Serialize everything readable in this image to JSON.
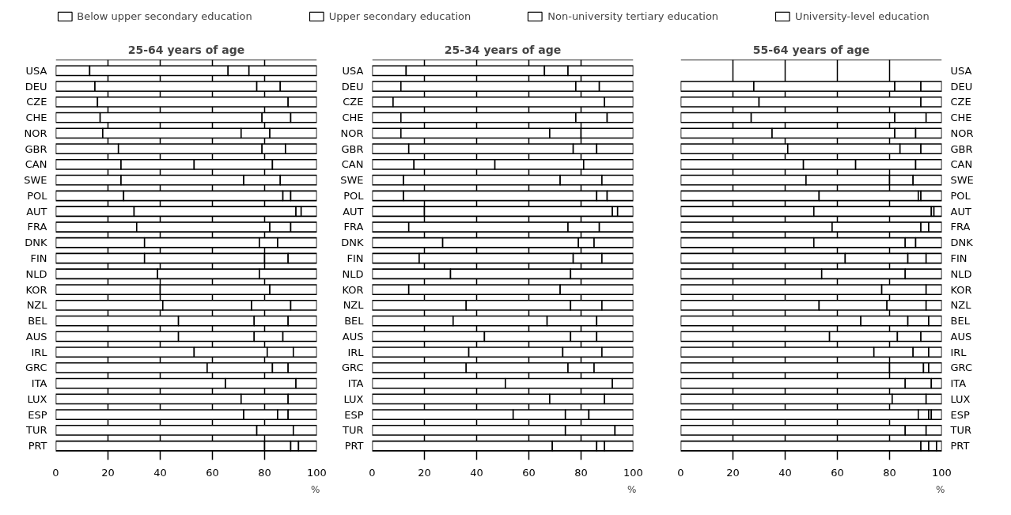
{
  "chart_data": [
    {
      "type": "bar",
      "title": "25-64 years of age",
      "xlabel": "%",
      "orientation": "horizontal",
      "stacked": true,
      "legend": "top",
      "grid": "x",
      "xlim": [
        0,
        100
      ],
      "xticks": [
        0,
        20,
        40,
        60,
        80,
        100
      ],
      "categories": [
        "USA",
        "DEU",
        "CZE",
        "CHE",
        "NOR",
        "GBR",
        "CAN",
        "SWE",
        "POL",
        "AUT",
        "FRA",
        "DNK",
        "FIN",
        "NLD",
        "KOR",
        "NZL",
        "BEL",
        "AUS",
        "IRL",
        "GRC",
        "ITA",
        "LUX",
        "ESP",
        "TUR",
        "PRT"
      ],
      "series": [
        {
          "name": "Below upper secondary education",
          "color": "#ffffff",
          "values": [
            13,
            15,
            16,
            17,
            18,
            24,
            25,
            25,
            26,
            30,
            31,
            34,
            34,
            39,
            40,
            41,
            47,
            47,
            53,
            58,
            65,
            71,
            72,
            77,
            80
          ]
        },
        {
          "name": "Upper secondary education",
          "color": "#ffffff",
          "values": [
            53,
            62,
            73,
            62,
            53,
            55,
            28,
            47,
            61,
            62,
            51,
            44,
            46,
            39,
            42,
            34,
            29,
            29,
            28,
            25,
            27,
            18,
            13,
            14,
            10
          ]
        },
        {
          "name": "Non-university tertiary education",
          "color": "#ffffff",
          "values": [
            8,
            9,
            0,
            11,
            11,
            9,
            30,
            14,
            3,
            2,
            8,
            7,
            9,
            0,
            0,
            15,
            13,
            11,
            10,
            6,
            0,
            0,
            4,
            0,
            3
          ]
        },
        {
          "name": "University-level education",
          "color": "#ffffff",
          "values": [
            26,
            14,
            11,
            10,
            18,
            12,
            17,
            14,
            10,
            6,
            10,
            15,
            11,
            22,
            18,
            10,
            11,
            13,
            9,
            11,
            8,
            11,
            11,
            9,
            7
          ]
        }
      ]
    },
    {
      "type": "bar",
      "title": "25-34 years of age",
      "xlabel": "%",
      "orientation": "horizontal",
      "stacked": true,
      "grid": "x",
      "xlim": [
        0,
        100
      ],
      "xticks": [
        0,
        20,
        40,
        60,
        80,
        100
      ],
      "categories": [
        "USA",
        "DEU",
        "CZE",
        "CHE",
        "NOR",
        "GBR",
        "CAN",
        "SWE",
        "POL",
        "AUT",
        "FRA",
        "DNK",
        "FIN",
        "NLD",
        "KOR",
        "NZL",
        "BEL",
        "AUS",
        "IRL",
        "GRC",
        "ITA",
        "LUX",
        "ESP",
        "TUR",
        "PRT"
      ],
      "series": [
        {
          "color": "#ffffff",
          "values": [
            13,
            11,
            8,
            11,
            11,
            14,
            16,
            12,
            12,
            20,
            14,
            27,
            18,
            30,
            14,
            36,
            31,
            43,
            37,
            36,
            51,
            68,
            54,
            74,
            69
          ]
        },
        {
          "color": "#ffffff",
          "values": [
            53,
            67,
            81,
            67,
            57,
            63,
            31,
            60,
            74,
            72,
            61,
            52,
            59,
            46,
            58,
            40,
            36,
            33,
            36,
            39,
            41,
            21,
            20,
            19,
            17
          ]
        },
        {
          "color": "#ffffff",
          "values": [
            9,
            9,
            0,
            12,
            12,
            9,
            34,
            16,
            4,
            2,
            12,
            6,
            11,
            0,
            0,
            12,
            19,
            10,
            15,
            10,
            0,
            0,
            9,
            0,
            3
          ]
        },
        {
          "color": "#ffffff",
          "values": [
            25,
            13,
            11,
            10,
            20,
            14,
            19,
            12,
            10,
            6,
            13,
            15,
            12,
            24,
            28,
            12,
            14,
            14,
            12,
            15,
            8,
            11,
            17,
            7,
            11
          ]
        }
      ]
    },
    {
      "type": "bar",
      "title": "55-64 years of age",
      "xlabel": "%",
      "orientation": "horizontal",
      "stacked": true,
      "grid": "x",
      "xlim": [
        0,
        100
      ],
      "xticks": [
        0,
        20,
        40,
        60,
        80,
        100
      ],
      "categories": [
        "USA",
        "DEU",
        "CZE",
        "CHE",
        "NOR",
        "GBR",
        "CAN",
        "SWE",
        "POL",
        "AUT",
        "FRA",
        "DNK",
        "FIN",
        "NLD",
        "KOR",
        "NZL",
        "BEL",
        "AUS",
        "IRL",
        "GRC",
        "ITA",
        "LUX",
        "ESP",
        "TUR",
        "PRT"
      ],
      "series": [
        {
          "color": "#ffffff",
          "values": [
            null,
            28,
            30,
            27,
            35,
            41,
            47,
            48,
            53,
            51,
            58,
            51,
            63,
            54,
            77,
            53,
            69,
            57,
            74,
            80,
            86,
            81,
            91,
            86,
            92
          ]
        },
        {
          "color": "#ffffff",
          "values": [
            null,
            54,
            62,
            55,
            47,
            43,
            20,
            32,
            38,
            45,
            34,
            35,
            24,
            32,
            17,
            26,
            18,
            26,
            15,
            13,
            10,
            13,
            4,
            8,
            3
          ]
        },
        {
          "color": "#ffffff",
          "values": [
            null,
            10,
            0,
            12,
            8,
            8,
            23,
            9,
            1,
            1,
            3,
            4,
            7,
            0,
            0,
            15,
            8,
            9,
            6,
            2,
            0,
            0,
            1,
            0,
            3
          ]
        },
        {
          "color": "#ffffff",
          "values": [
            null,
            8,
            8,
            6,
            10,
            8,
            10,
            11,
            8,
            3,
            5,
            10,
            6,
            14,
            6,
            6,
            5,
            8,
            5,
            5,
            4,
            6,
            4,
            6,
            2
          ]
        }
      ]
    }
  ]
}
